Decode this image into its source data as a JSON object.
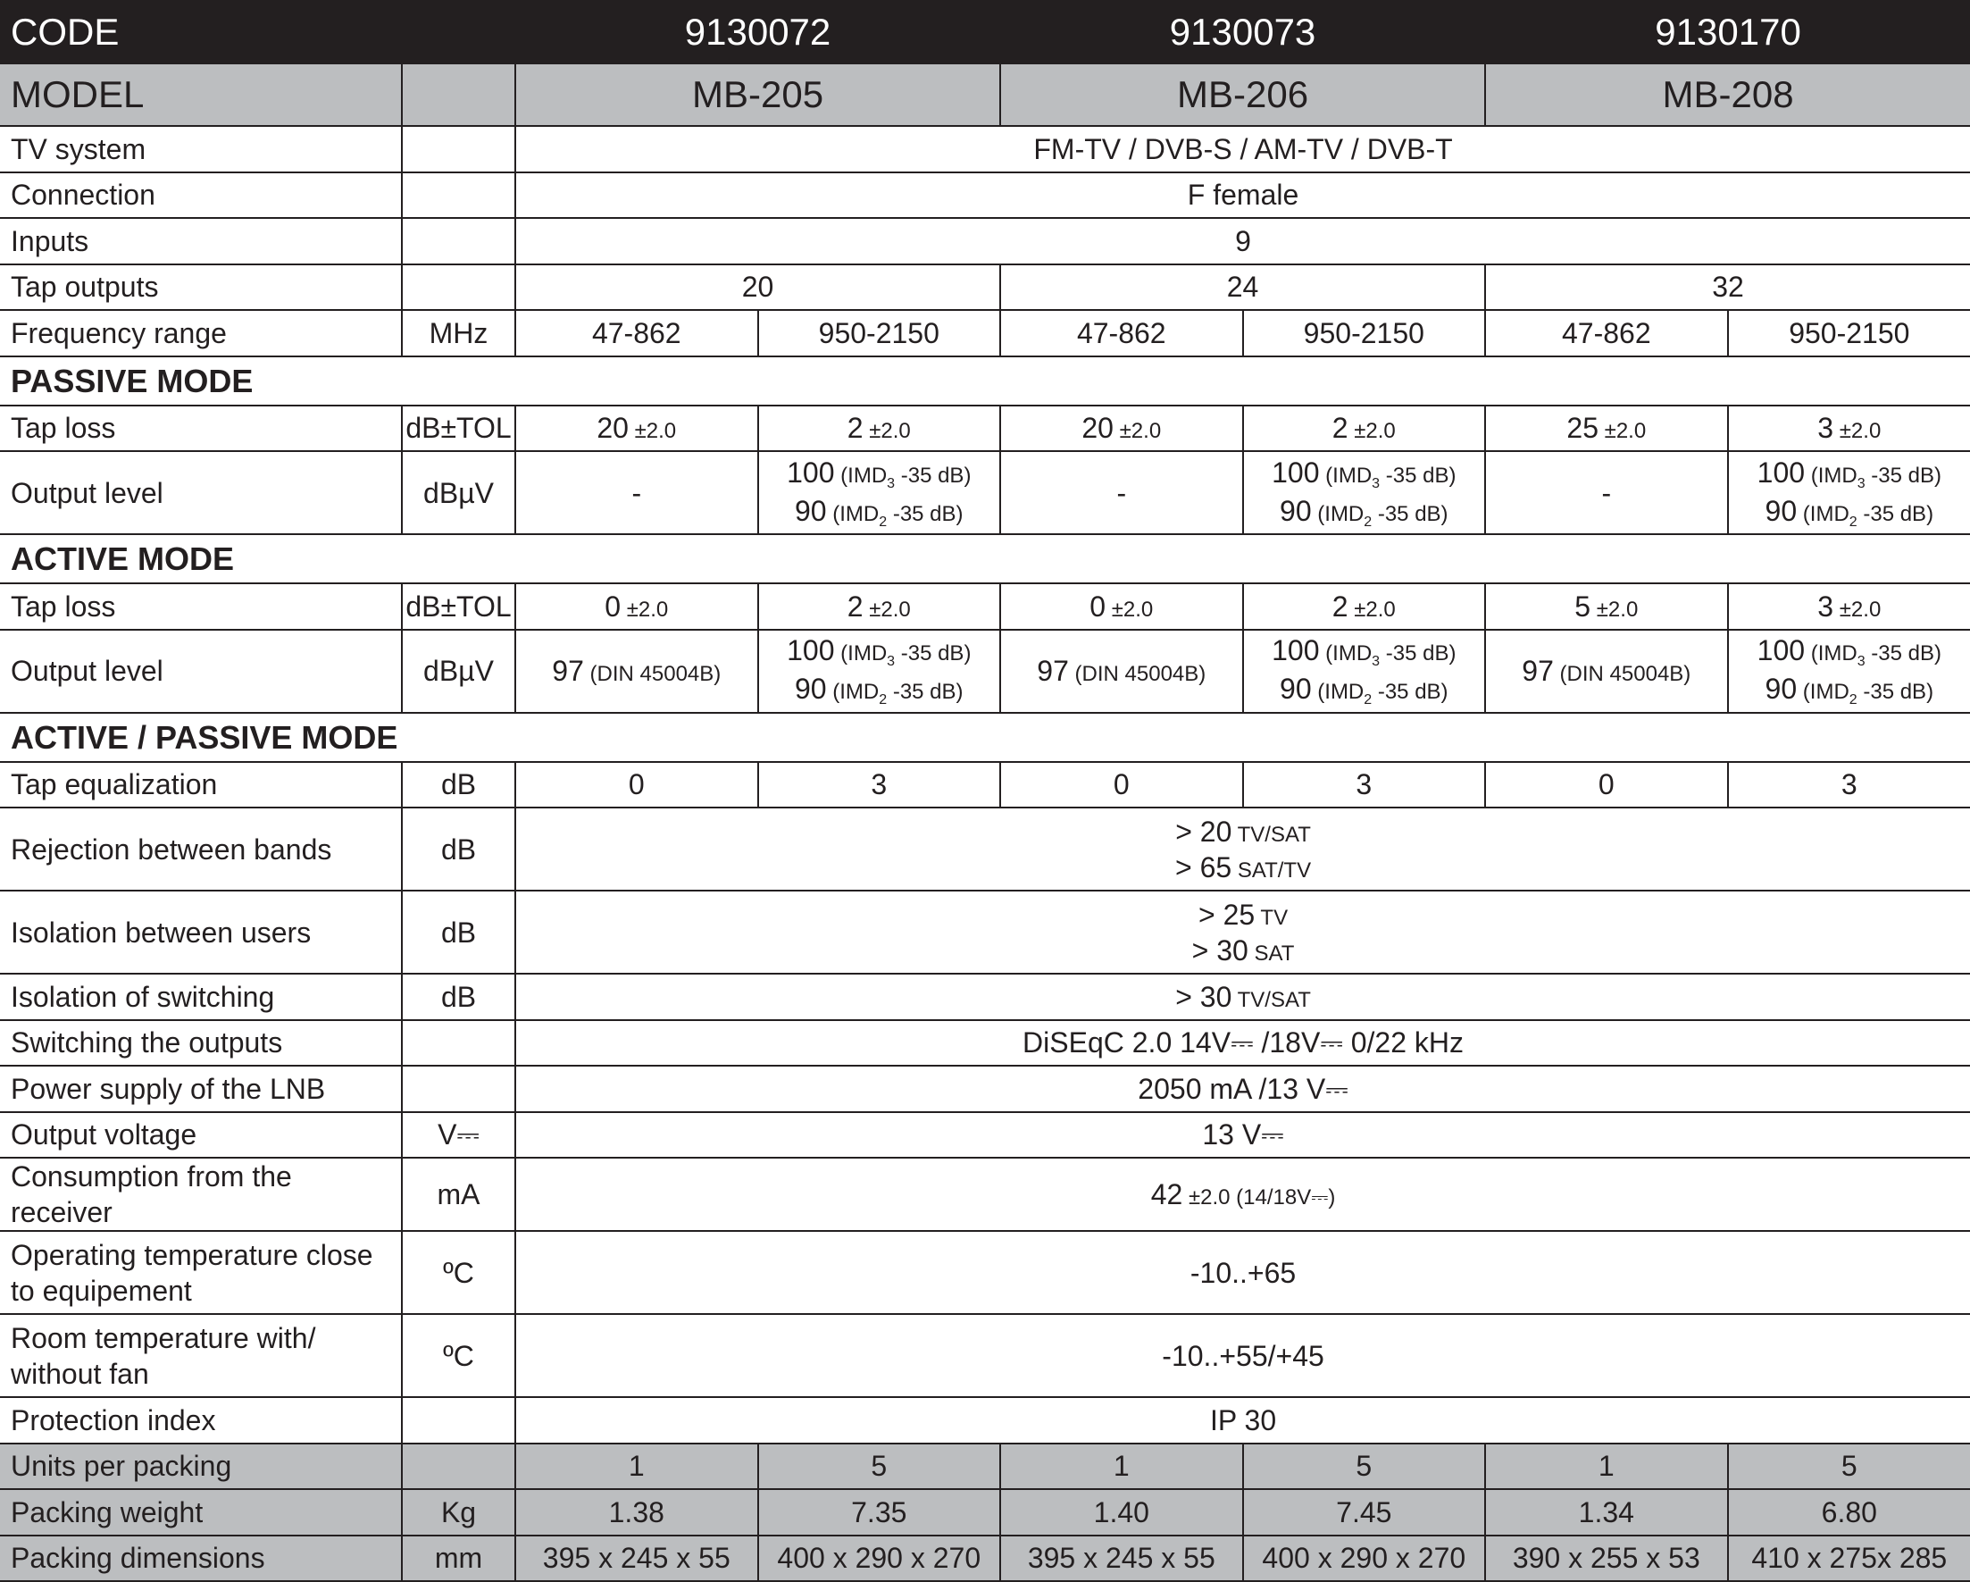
{
  "colors": {
    "header_dark": "#231f20",
    "header_gray": "#bcbec0",
    "text": "#231f20"
  },
  "rows": [
    {
      "type": "hdr-dark",
      "label": "CODE",
      "merge_unit": true,
      "cells": [
        {
          "t": "9130072",
          "span": 2
        },
        {
          "t": "9130073",
          "span": 2
        },
        {
          "t": "9130170",
          "span": 2
        }
      ]
    },
    {
      "type": "hdr-gray",
      "label": "MODEL",
      "unit": "",
      "cells": [
        {
          "t": "MB-205",
          "span": 2
        },
        {
          "t": "MB-206",
          "span": 2
        },
        {
          "t": "MB-208",
          "span": 2
        }
      ]
    },
    {
      "type": "normal",
      "label": "TV system",
      "unit": "",
      "cells": [
        {
          "t": "FM-TV / DVB-S / AM-TV / DVB-T",
          "span": 6
        }
      ]
    },
    {
      "type": "normal",
      "label": "Connection",
      "unit": "",
      "cells": [
        {
          "t": "F female",
          "span": 6
        }
      ]
    },
    {
      "type": "normal",
      "label": "Inputs",
      "unit": "",
      "cells": [
        {
          "t": "9",
          "span": 6
        }
      ]
    },
    {
      "type": "normal",
      "label": "Tap outputs",
      "unit": "",
      "cells": [
        {
          "t": "20",
          "span": 2
        },
        {
          "t": "24",
          "span": 2
        },
        {
          "t": "32",
          "span": 2
        }
      ]
    },
    {
      "type": "normal",
      "label": "Frequency range",
      "unit": "MHz",
      "cells": [
        "47-862",
        "950-2150",
        "47-862",
        "950-2150",
        "47-862",
        "950-2150"
      ]
    },
    {
      "type": "section",
      "label": "PASSIVE MODE"
    },
    {
      "type": "normal",
      "label": "Tap loss",
      "unit": "dB±TOL",
      "cells": [
        {
          "lines": [
            [
              [
                "20",
                "n"
              ],
              [
                " ±2.0",
                "sm"
              ]
            ]
          ]
        },
        {
          "lines": [
            [
              [
                "2",
                "n"
              ],
              [
                " ±2.0",
                "sm"
              ]
            ]
          ]
        },
        {
          "lines": [
            [
              [
                "20",
                "n"
              ],
              [
                " ±2.0",
                "sm"
              ]
            ]
          ]
        },
        {
          "lines": [
            [
              [
                "2",
                "n"
              ],
              [
                " ±2.0",
                "sm"
              ]
            ]
          ]
        },
        {
          "lines": [
            [
              [
                "25",
                "n"
              ],
              [
                " ±2.0",
                "sm"
              ]
            ]
          ]
        },
        {
          "lines": [
            [
              [
                "3",
                "n"
              ],
              [
                " ±2.0",
                "sm"
              ]
            ]
          ]
        }
      ]
    },
    {
      "type": "double",
      "label": "Output level",
      "unit": "dBµV",
      "cells": [
        "-",
        {
          "lines": [
            [
              [
                "100",
                "n"
              ],
              [
                " (IMD",
                "sm"
              ],
              [
                "3",
                "sub"
              ],
              [
                " -35 dB)",
                "sm"
              ]
            ],
            [
              [
                "90",
                "n"
              ],
              [
                " (IMD",
                "sm"
              ],
              [
                "2",
                "sub"
              ],
              [
                " -35 dB)",
                "sm"
              ]
            ]
          ]
        },
        "-",
        {
          "lines": [
            [
              [
                "100",
                "n"
              ],
              [
                " (IMD",
                "sm"
              ],
              [
                "3",
                "sub"
              ],
              [
                " -35 dB)",
                "sm"
              ]
            ],
            [
              [
                "90",
                "n"
              ],
              [
                " (IMD",
                "sm"
              ],
              [
                "2",
                "sub"
              ],
              [
                " -35 dB)",
                "sm"
              ]
            ]
          ]
        },
        "-",
        {
          "lines": [
            [
              [
                "100",
                "n"
              ],
              [
                " (IMD",
                "sm"
              ],
              [
                "3",
                "sub"
              ],
              [
                " -35 dB)",
                "sm"
              ]
            ],
            [
              [
                "90",
                "n"
              ],
              [
                " (IMD",
                "sm"
              ],
              [
                "2",
                "sub"
              ],
              [
                " -35 dB)",
                "sm"
              ]
            ]
          ]
        }
      ]
    },
    {
      "type": "section",
      "label": "ACTIVE MODE"
    },
    {
      "type": "normal",
      "label": "Tap loss",
      "unit": "dB±TOL",
      "cells": [
        {
          "lines": [
            [
              [
                "0",
                "n"
              ],
              [
                " ±2.0",
                "sm"
              ]
            ]
          ]
        },
        {
          "lines": [
            [
              [
                "2",
                "n"
              ],
              [
                " ±2.0",
                "sm"
              ]
            ]
          ]
        },
        {
          "lines": [
            [
              [
                "0",
                "n"
              ],
              [
                " ±2.0",
                "sm"
              ]
            ]
          ]
        },
        {
          "lines": [
            [
              [
                "2",
                "n"
              ],
              [
                " ±2.0",
                "sm"
              ]
            ]
          ]
        },
        {
          "lines": [
            [
              [
                "5",
                "n"
              ],
              [
                " ±2.0",
                "sm"
              ]
            ]
          ]
        },
        {
          "lines": [
            [
              [
                "3",
                "n"
              ],
              [
                " ±2.0",
                "sm"
              ]
            ]
          ]
        }
      ]
    },
    {
      "type": "double",
      "label": "Output level",
      "unit": "dBµV",
      "cells": [
        {
          "lines": [
            [
              [
                "97",
                "n"
              ],
              [
                " (DIN 45004B)",
                "sm"
              ]
            ]
          ]
        },
        {
          "lines": [
            [
              [
                "100",
                "n"
              ],
              [
                " (IMD",
                "sm"
              ],
              [
                "3",
                "sub"
              ],
              [
                " -35 dB)",
                "sm"
              ]
            ],
            [
              [
                "90",
                "n"
              ],
              [
                " (IMD",
                "sm"
              ],
              [
                "2",
                "sub"
              ],
              [
                " -35 dB)",
                "sm"
              ]
            ]
          ]
        },
        {
          "lines": [
            [
              [
                "97",
                "n"
              ],
              [
                " (DIN 45004B)",
                "sm"
              ]
            ]
          ]
        },
        {
          "lines": [
            [
              [
                "100",
                "n"
              ],
              [
                " (IMD",
                "sm"
              ],
              [
                "3",
                "sub"
              ],
              [
                " -35 dB)",
                "sm"
              ]
            ],
            [
              [
                "90",
                "n"
              ],
              [
                " (IMD",
                "sm"
              ],
              [
                "2",
                "sub"
              ],
              [
                " -35 dB)",
                "sm"
              ]
            ]
          ]
        },
        {
          "lines": [
            [
              [
                "97",
                "n"
              ],
              [
                " (DIN 45004B)",
                "sm"
              ]
            ]
          ]
        },
        {
          "lines": [
            [
              [
                "100",
                "n"
              ],
              [
                " (IMD",
                "sm"
              ],
              [
                "3",
                "sub"
              ],
              [
                " -35 dB)",
                "sm"
              ]
            ],
            [
              [
                "90",
                "n"
              ],
              [
                " (IMD",
                "sm"
              ],
              [
                "2",
                "sub"
              ],
              [
                " -35 dB)",
                "sm"
              ]
            ]
          ]
        }
      ]
    },
    {
      "type": "section",
      "label": "ACTIVE / PASSIVE MODE"
    },
    {
      "type": "normal",
      "label": "Tap equalization",
      "unit": "dB",
      "cells": [
        "0",
        "3",
        "0",
        "3",
        "0",
        "3"
      ]
    },
    {
      "type": "double",
      "label": "Rejection between bands",
      "unit": "dB",
      "cells": [
        {
          "span": 6,
          "lines": [
            [
              [
                "> 20",
                "n"
              ],
              [
                " TV/SAT",
                "sm"
              ]
            ],
            [
              [
                "> 65",
                "n"
              ],
              [
                " SAT/TV",
                "sm"
              ]
            ]
          ]
        }
      ]
    },
    {
      "type": "double",
      "label": "Isolation between users",
      "unit": "dB",
      "cells": [
        {
          "span": 6,
          "lines": [
            [
              [
                "> 25",
                "n"
              ],
              [
                " TV",
                "sm"
              ]
            ],
            [
              [
                "> 30",
                "n"
              ],
              [
                " SAT",
                "sm"
              ]
            ]
          ]
        }
      ]
    },
    {
      "type": "normal",
      "label": "Isolation of switching",
      "unit": "dB",
      "cells": [
        {
          "span": 6,
          "lines": [
            [
              [
                "> 30",
                "n"
              ],
              [
                " TV/SAT",
                "sm"
              ]
            ]
          ]
        }
      ]
    },
    {
      "type": "normal",
      "label": "Switching the outputs",
      "unit": "",
      "cells": [
        {
          "t": "DiSEqC 2.0  14V⎓ /18V⎓  0/22 kHz",
          "span": 6
        }
      ]
    },
    {
      "type": "normal",
      "label": "Power supply of the LNB",
      "unit": "",
      "cells": [
        {
          "t": "2050 mA /13 V⎓",
          "span": 6
        }
      ]
    },
    {
      "type": "normal",
      "label": "Output voltage",
      "unit": "V⎓",
      "cells": [
        {
          "t": "13 V⎓",
          "span": 6
        }
      ]
    },
    {
      "type": "normal",
      "label": "Consumption from the receiver",
      "unit": "mA",
      "cells": [
        {
          "span": 6,
          "lines": [
            [
              [
                "42",
                "n"
              ],
              [
                " ±2.0  (14/18V⎓)",
                "sm"
              ]
            ]
          ]
        }
      ]
    },
    {
      "type": "double",
      "label": "Operating temperature close to equipement",
      "unit": "ºC",
      "cells": [
        {
          "t": "-10..+65",
          "span": 6
        }
      ]
    },
    {
      "type": "double",
      "label": "Room temperature with/ without fan",
      "unit": "ºC",
      "cells": [
        {
          "t": "-10..+55/+45",
          "span": 6
        }
      ]
    },
    {
      "type": "normal",
      "label": "Protection index",
      "unit": "",
      "cells": [
        {
          "t": "IP 30",
          "span": 6
        }
      ]
    },
    {
      "type": "gray",
      "label": "Units per packing",
      "unit": "",
      "cells": [
        "1",
        "5",
        "1",
        "5",
        "1",
        "5"
      ]
    },
    {
      "type": "gray",
      "label": "Packing weight",
      "unit": "Kg",
      "cells": [
        "1.38",
        "7.35",
        "1.40",
        "7.45",
        "1.34",
        "6.80"
      ]
    },
    {
      "type": "gray",
      "label": "Packing dimensions",
      "unit": "mm",
      "cells": [
        "395 x 245 x 55",
        "400 x 290 x 270",
        "395 x 245 x 55",
        "400 x 290 x 270",
        "390 x 255 x 53",
        "410 x 275x 285"
      ]
    }
  ]
}
